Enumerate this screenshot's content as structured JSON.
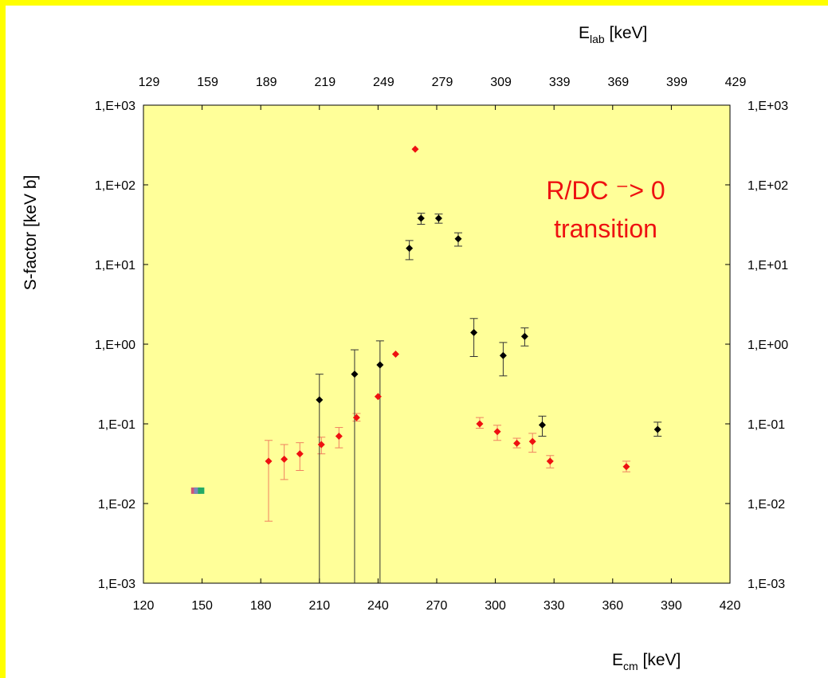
{
  "chart_data": {
    "type": "scatter",
    "ylog": true,
    "ylim": [
      0.001,
      1000
    ],
    "xlim": [
      120,
      420
    ],
    "x_tick_labels": [
      "120",
      "150",
      "180",
      "210",
      "240",
      "270",
      "300",
      "330",
      "360",
      "390",
      "420"
    ],
    "x_top_tick_labels": [
      "129",
      "159",
      "189",
      "219",
      "249",
      "279",
      "309",
      "339",
      "369",
      "399",
      "429"
    ],
    "y_tick_labels": [
      "1,E-03",
      "1,E-02",
      "1,E-01",
      "1,E+00",
      "1,E+01",
      "1,E+02",
      "1,E+03"
    ],
    "y_tick_values": [
      0.001,
      0.01,
      0.1,
      1,
      10,
      100,
      1000
    ],
    "ylabel": "S-factor [keV b]",
    "xlabel": {
      "main": "E",
      "sub": "cm",
      "unit": " [keV]"
    },
    "x_top_label": {
      "main": "E",
      "sub": "lab",
      "unit": " [keV]"
    },
    "annotation": [
      "R/DC ⁻> 0",
      "transition"
    ],
    "colors": {
      "plot_bg": "#ffff99",
      "frame": "#ffff00",
      "red": "#ee1111",
      "black": "#000000",
      "err_red": "#f08060",
      "err_black": "#333333"
    },
    "grid": false,
    "series": [
      {
        "color": "red",
        "points": [
          {
            "x": 184,
            "y": 0.034,
            "lo": 0.006,
            "hi": 0.062
          },
          {
            "x": 192,
            "y": 0.036,
            "lo": 0.02,
            "hi": 0.055
          },
          {
            "x": 200,
            "y": 0.042,
            "lo": 0.026,
            "hi": 0.058
          },
          {
            "x": 211,
            "y": 0.055,
            "lo": 0.042,
            "hi": 0.068
          },
          {
            "x": 220,
            "y": 0.07,
            "lo": 0.05,
            "hi": 0.09
          },
          {
            "x": 229,
            "y": 0.12,
            "lo": 0.108,
            "hi": 0.135
          },
          {
            "x": 240,
            "y": 0.22
          },
          {
            "x": 249,
            "y": 0.75
          },
          {
            "x": 259,
            "y": 280
          },
          {
            "x": 292,
            "y": 0.1,
            "lo": 0.088,
            "hi": 0.12
          },
          {
            "x": 301,
            "y": 0.08,
            "lo": 0.062,
            "hi": 0.096
          },
          {
            "x": 311,
            "y": 0.057,
            "lo": 0.05,
            "hi": 0.066
          },
          {
            "x": 319,
            "y": 0.06,
            "lo": 0.044,
            "hi": 0.076
          },
          {
            "x": 328,
            "y": 0.034,
            "lo": 0.028,
            "hi": 0.04
          },
          {
            "x": 367,
            "y": 0.029,
            "lo": 0.025,
            "hi": 0.034
          }
        ]
      },
      {
        "color": "black",
        "points": [
          {
            "x": 210,
            "y": 0.2,
            "lo": 0.001,
            "hi": 0.42
          },
          {
            "x": 228,
            "y": 0.42,
            "lo": 0.001,
            "hi": 0.85
          },
          {
            "x": 241,
            "y": 0.55,
            "lo": 0.001,
            "hi": 1.1
          },
          {
            "x": 256,
            "y": 16,
            "lo": 11.5,
            "hi": 20
          },
          {
            "x": 262,
            "y": 38,
            "lo": 32,
            "hi": 44
          },
          {
            "x": 271,
            "y": 38,
            "lo": 33,
            "hi": 43
          },
          {
            "x": 281,
            "y": 21,
            "lo": 17,
            "hi": 25
          },
          {
            "x": 289,
            "y": 1.4,
            "lo": 0.7,
            "hi": 2.1
          },
          {
            "x": 304,
            "y": 0.72,
            "lo": 0.4,
            "hi": 1.05
          },
          {
            "x": 315,
            "y": 1.25,
            "lo": 0.95,
            "hi": 1.6
          },
          {
            "x": 324,
            "y": 0.097,
            "lo": 0.07,
            "hi": 0.125
          },
          {
            "x": 383,
            "y": 0.085,
            "lo": 0.07,
            "hi": 0.105
          }
        ]
      },
      {
        "color": "mixed",
        "points": [
          {
            "x": 146,
            "y": 0.0145,
            "color": "#cc5577"
          },
          {
            "x": 147.5,
            "y": 0.0145,
            "color": "#7788bb"
          },
          {
            "x": 149.5,
            "y": 0.0145,
            "color": "#22aa66"
          }
        ]
      }
    ]
  }
}
